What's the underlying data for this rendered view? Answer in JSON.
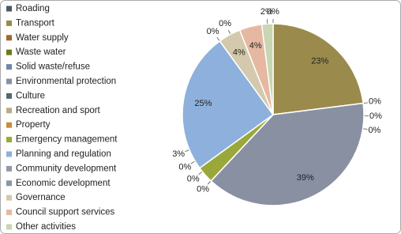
{
  "chart_data": {
    "type": "pie",
    "categories": [
      "Roading",
      "Transport",
      "Water supply",
      "Waste water",
      "Solid waste/refuse",
      "Environmental protection",
      "Culture",
      "Recreation and sport",
      "Property",
      "Emergency management",
      "Planning and regulation",
      "Community development",
      "Economic development",
      "Governance",
      "Council support services",
      "Other activities"
    ],
    "values": [
      0,
      23,
      0,
      0,
      0,
      39,
      0,
      0,
      0,
      3,
      25,
      0,
      0,
      4,
      4,
      2
    ],
    "value_labels": [
      "0%",
      "23%",
      "0%",
      "0%",
      "0%",
      "39%",
      "0%",
      "0%",
      "0%",
      "3%",
      "25%",
      "0%",
      "0%",
      "4%",
      "4%",
      "2%"
    ],
    "colors": [
      "#4a5866",
      "#9a8a4c",
      "#a4662c",
      "#6b7a1c",
      "#6f88aa",
      "#8890a2",
      "#4f6a72",
      "#b8ae86",
      "#c88e3a",
      "#9aa83a",
      "#8eb0dc",
      "#9399a6",
      "#8598aa",
      "#d4c9ac",
      "#e6b8a2",
      "#c8d6b4"
    ],
    "legend": "left"
  }
}
